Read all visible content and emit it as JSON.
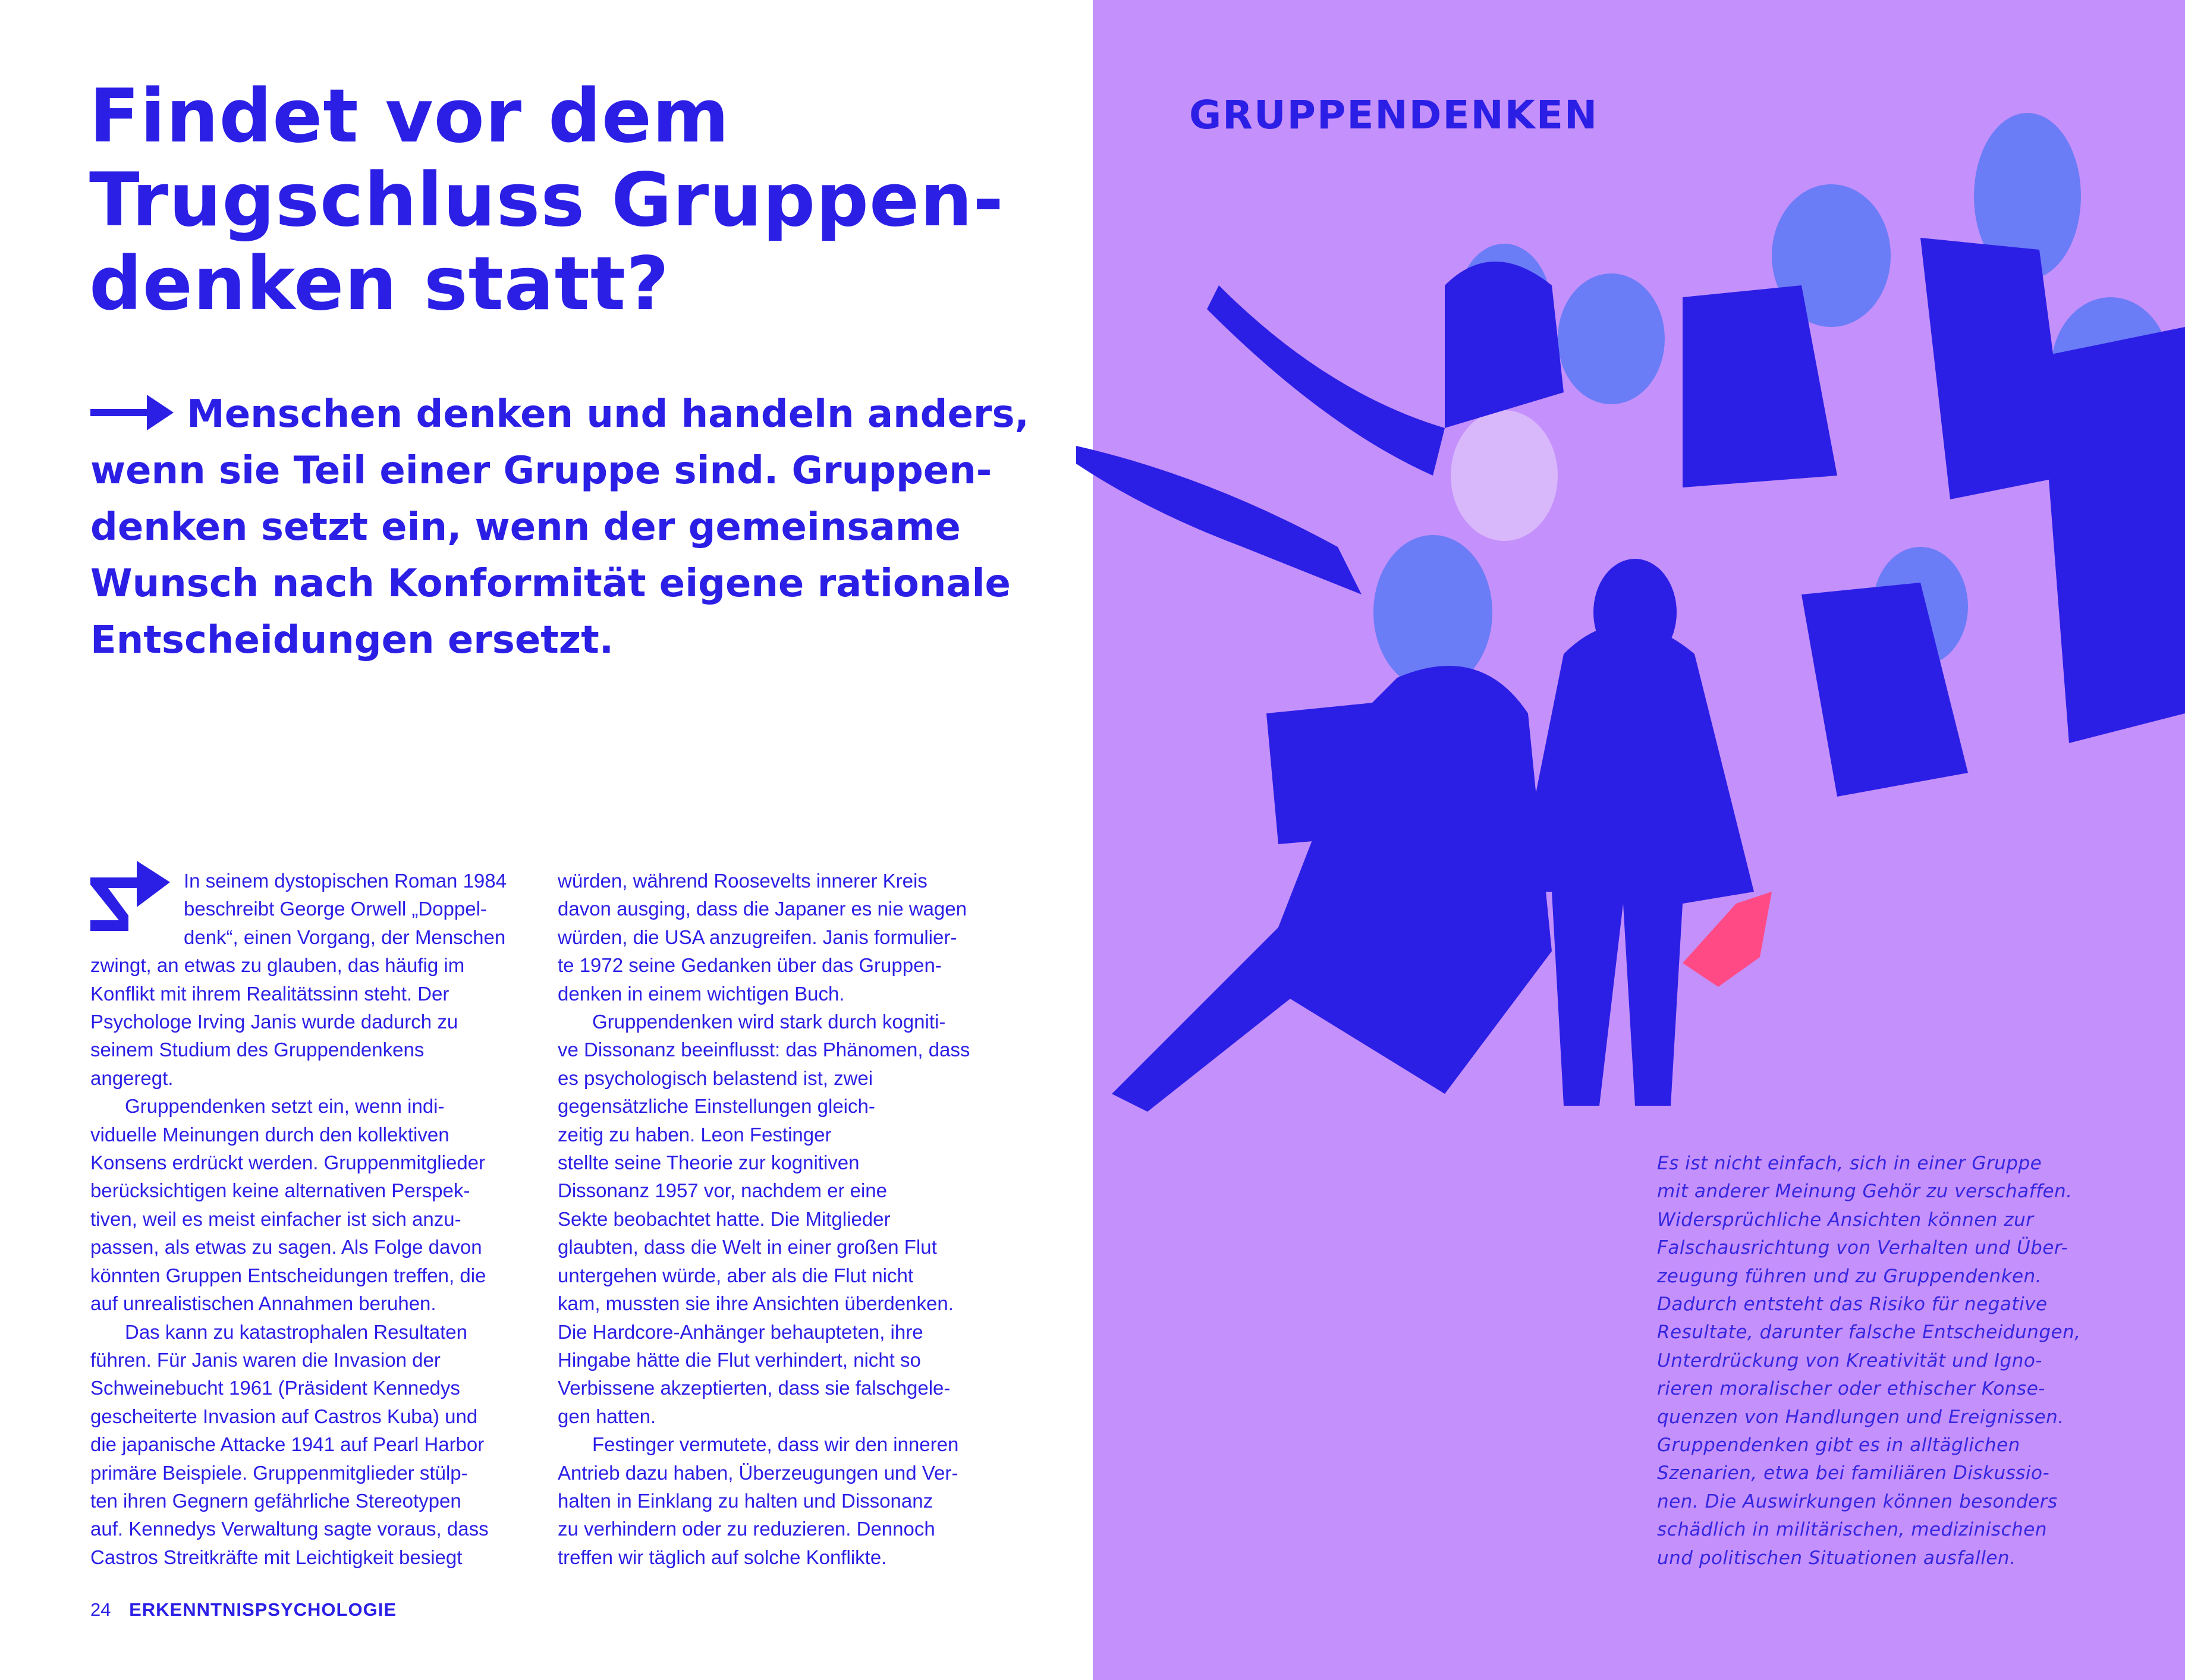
{
  "colors": {
    "accent_blue": "#2b1fe6",
    "purple_bg": "#c490fb",
    "light_blue": "#6b7cf7",
    "lilac": "#d9b7fb",
    "pink": "#ff4a86"
  },
  "title": {
    "lines": [
      "Findet vor dem",
      "Trugschluss Gruppen-",
      "denken statt?"
    ]
  },
  "lead": {
    "icon": "arrow-right-icon",
    "lines": [
      "Menschen denken und handeln anders,",
      "wenn sie Teil einer Gruppe sind. Gruppen-",
      "denken setzt ein, wenn der gemeinsame",
      "Wunsch nach Konformität eigene rationale",
      "Entscheidungen ersetzt."
    ]
  },
  "body": {
    "dropcap_icon": "zigzag-arrow-icon",
    "col1": [
      [
        "In seinem dystopischen Roman 1984",
        "beschreibt George Orwell „Doppel-",
        "denk“, einen Vorgang, der Menschen",
        "zwingt, an etwas zu glauben, das häufig im",
        "Konflikt mit ihrem Realitätssinn steht. Der",
        "Psychologe Irving Janis wurde dadurch zu",
        "seinem Studium des Gruppendenkens",
        "angeregt."
      ],
      [
        "Gruppendenken setzt ein, wenn indi-",
        "viduelle Meinungen durch den kollektiven",
        "Konsens erdrückt werden. Gruppenmitglieder",
        "berücksichtigen keine alternativen Perspek-",
        "tiven, weil es meist einfacher ist sich anzu-",
        "passen, als etwas zu sagen. Als Folge davon",
        "könnten Gruppen Entscheidungen treffen, die",
        "auf unrealistischen Annahmen beruhen."
      ],
      [
        "Das kann zu katastrophalen Resultaten",
        "führen. Für Janis waren die Invasion der",
        "Schweinebucht 1961 (Präsident Kennedys",
        "gescheiterte Invasion auf Castros Kuba) und",
        "die japanische Attacke 1941 auf Pearl Harbor",
        "primäre Beispiele. Gruppenmitglieder stülp-",
        "ten ihren Gegnern gefährliche Stereotypen",
        "auf. Kennedys Verwaltung sagte voraus, dass",
        "Castros Streitkräfte mit Leichtigkeit besiegt"
      ]
    ],
    "col2": [
      [
        "würden, während Roosevelts innerer Kreis",
        "davon ausging, dass die Japaner es nie wagen",
        "würden, die USA anzugreifen. Janis formulier-",
        "te 1972 seine Gedanken über das Gruppen-",
        "denken in einem wichtigen Buch."
      ],
      [
        "Gruppendenken wird stark durch kogniti-",
        "ve Dissonanz beeinflusst: das Phänomen, dass",
        "es psychologisch belastend ist, zwei",
        "gegensätzliche Einstellungen gleich-",
        "zeitig zu haben. Leon Festinger",
        "stellte seine Theorie zur kognitiven",
        "Dissonanz 1957 vor, nachdem er eine",
        "Sekte beobachtet hatte. Die Mitglieder",
        "glaubten, dass die Welt in einer großen Flut",
        "untergehen würde, aber als die Flut nicht",
        "kam, mussten sie ihre Ansichten überdenken.",
        "Die Hardcore-Anhänger behaupteten, ihre",
        "Hingabe hätte die Flut verhindert, nicht so",
        "Verbissene akzeptierten, dass sie falschgele-",
        "gen hatten."
      ],
      [
        "Festinger vermutete, dass wir den inneren",
        "Antrieb dazu haben, Überzeugungen und Ver-",
        "halten in Einklang zu halten und Dissonanz",
        "zu verhindern oder zu reduzieren. Dennoch",
        "treffen wir täglich auf solche Konflikte."
      ]
    ]
  },
  "footer": {
    "page_number": "24",
    "section": "ERKENNTNISPSYCHOLOGIE"
  },
  "right": {
    "heading": "GRUPPENDENKEN",
    "illustration": "crowd-illustration",
    "caption": [
      "Es ist nicht einfach, sich in einer Gruppe",
      "mit anderer Meinung Gehör zu verschaffen.",
      "Widersprüchliche Ansichten können zur",
      "Falschausrichtung von Verhalten und Über-",
      "zeugung führen und zu Gruppendenken.",
      "Dadurch entsteht das Risiko für negative",
      "Resultate, darunter falsche Entscheidungen,",
      "Unterdrückung von Kreativität und Igno-",
      "rieren moralischer oder ethischer Konse-",
      "quenzen von Handlungen und Ereignissen.",
      "Gruppendenken gibt es in alltäglichen",
      "Szenarien, etwa bei familiären Diskussio-",
      "nen. Die Auswirkungen können besonders",
      "schädlich in militärischen, medizinischen",
      "und politischen Situationen ausfallen."
    ]
  }
}
